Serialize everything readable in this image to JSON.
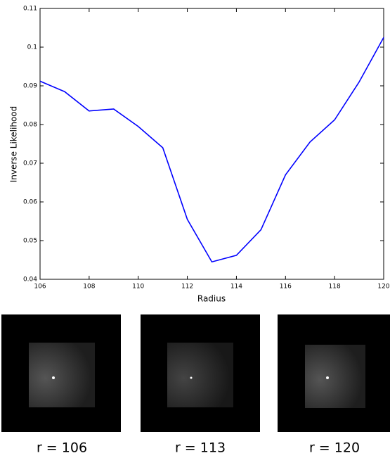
{
  "chart_data": {
    "type": "line",
    "x_label": "Radius",
    "y_label": "Inverse Likelihood",
    "x": [
      106,
      107,
      108,
      109,
      110,
      111,
      112,
      113,
      114,
      115,
      116,
      117,
      118,
      119,
      120
    ],
    "values": [
      0.0912,
      0.0885,
      0.0835,
      0.084,
      0.0795,
      0.074,
      0.0555,
      0.0445,
      0.0462,
      0.0528,
      0.067,
      0.0755,
      0.0812,
      0.091,
      0.1025
    ],
    "color": "#0000ff",
    "xlim": [
      106,
      120
    ],
    "xticks": [
      106,
      108,
      110,
      112,
      114,
      116,
      118,
      120
    ],
    "ylim": [
      0.04,
      0.11
    ],
    "yticks": [
      0.04,
      0.05,
      0.06,
      0.07,
      0.08,
      0.09,
      0.1,
      0.11
    ]
  },
  "panels": [
    {
      "label": "r = 106"
    },
    {
      "label": "r = 113"
    },
    {
      "label": "r = 120"
    }
  ]
}
